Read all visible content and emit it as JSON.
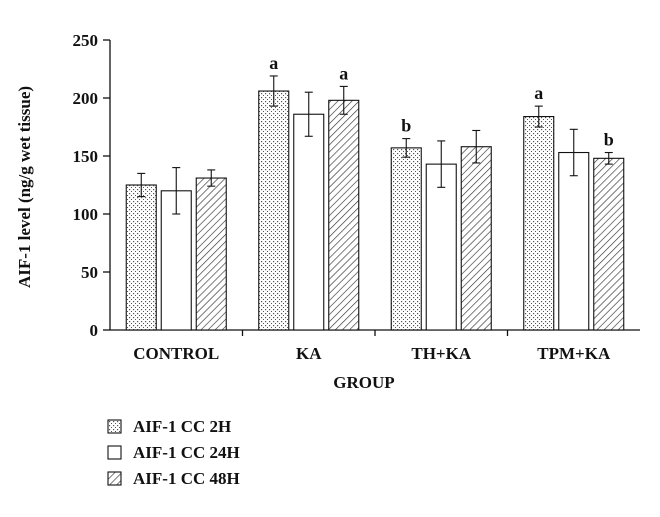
{
  "chart_data": {
    "type": "bar",
    "xlabel": "GROUP",
    "ylabel": "AIF-1 level (ng/g wet tissue)",
    "ylim": [
      0,
      250
    ],
    "yticks": [
      0,
      50,
      100,
      150,
      200,
      250
    ],
    "categories": [
      "CONTROL",
      "KA",
      "TH+KA",
      "TPM+KA"
    ],
    "series": [
      {
        "name": "AIF-1 CC 2H",
        "pattern": "dots",
        "values": [
          125,
          206,
          157,
          184
        ],
        "errors": [
          10,
          13,
          8,
          9
        ],
        "significance": [
          "",
          "a",
          "b",
          "a"
        ]
      },
      {
        "name": "AIF-1 CC 24H",
        "pattern": "none",
        "values": [
          120,
          186,
          143,
          153
        ],
        "errors": [
          20,
          19,
          20,
          20
        ],
        "significance": [
          "",
          "",
          "",
          ""
        ]
      },
      {
        "name": "AIF-1 CC 48H",
        "pattern": "hatch",
        "values": [
          131,
          198,
          158,
          148
        ],
        "errors": [
          7,
          12,
          14,
          5
        ],
        "significance": [
          "",
          "a",
          "",
          "b"
        ]
      }
    ],
    "legend_position": "bottom-left",
    "grid": false
  }
}
